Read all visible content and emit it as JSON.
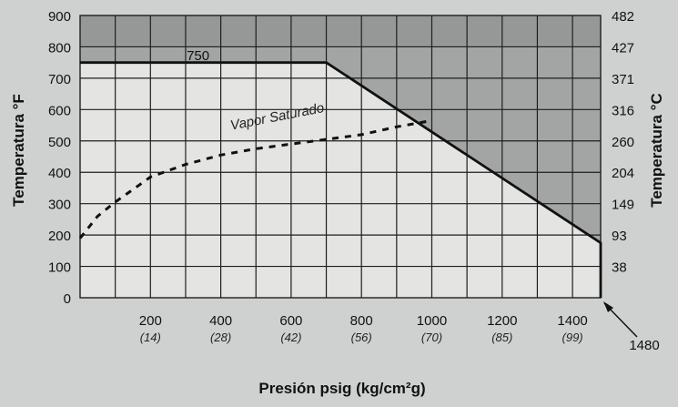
{
  "chart_data": {
    "type": "line",
    "ylabel_left": "Temperatura °F",
    "ylabel_right": "Temperatura °C",
    "xlabel": "Presión psig (kg/cm²g)",
    "xlim": [
      0,
      1480
    ],
    "ylim": [
      0,
      900
    ],
    "x_ticks": [
      {
        "value": 200,
        "label": "200",
        "sublabel": "(14)"
      },
      {
        "value": 400,
        "label": "400",
        "sublabel": "(28)"
      },
      {
        "value": 600,
        "label": "600",
        "sublabel": "(42)"
      },
      {
        "value": 800,
        "label": "800",
        "sublabel": "(56)"
      },
      {
        "value": 1000,
        "label": "1000",
        "sublabel": "(70)"
      },
      {
        "value": 1200,
        "label": "1200",
        "sublabel": "(85)"
      },
      {
        "value": 1400,
        "label": "1400",
        "sublabel": "(99)"
      }
    ],
    "y_ticks_left": [
      0,
      100,
      200,
      300,
      400,
      500,
      600,
      700,
      800,
      900
    ],
    "y_ticks_right": [
      {
        "value": 100,
        "label": "38"
      },
      {
        "value": 200,
        "label": "93"
      },
      {
        "value": 300,
        "label": "149"
      },
      {
        "value": 400,
        "label": "204"
      },
      {
        "value": 500,
        "label": "260"
      },
      {
        "value": 600,
        "label": "316"
      },
      {
        "value": 700,
        "label": "371"
      },
      {
        "value": 800,
        "label": "427"
      },
      {
        "value": 900,
        "label": "482"
      }
    ],
    "series": [
      {
        "name": "",
        "style": "solid",
        "x": [
          0,
          700,
          1480,
          1480
        ],
        "y": [
          750,
          750,
          175,
          0
        ]
      },
      {
        "name": "Vapor Saturado",
        "style": "dashed",
        "x": [
          0,
          50,
          100,
          150,
          200,
          300,
          400,
          500,
          600,
          700,
          800,
          900,
          1000
        ],
        "y": [
          190,
          260,
          305,
          345,
          385,
          425,
          455,
          475,
          490,
          505,
          520,
          545,
          565
        ]
      }
    ],
    "annotations": [
      {
        "text": "750",
        "x": 400,
        "y": 770
      },
      {
        "text": "1480",
        "x": 1480,
        "y": 0
      }
    ],
    "grid": true,
    "colors": {
      "background": "#cfd1d0",
      "plot_light": "#e4e5e3",
      "plot_dark": "#a3a5a4",
      "band_dark": "#8c8e8d",
      "grid": "#1e1e1e",
      "line": "#111111"
    }
  }
}
